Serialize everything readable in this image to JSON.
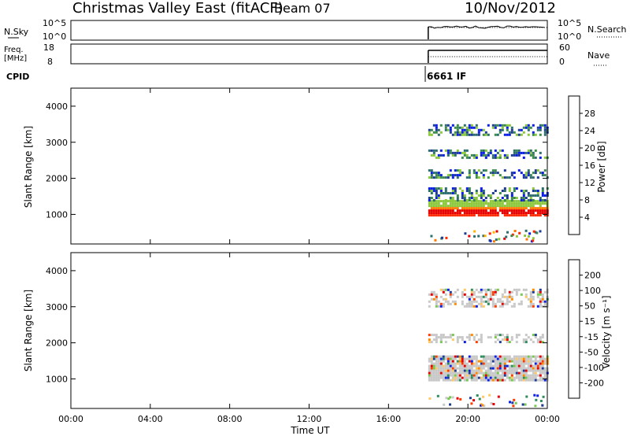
{
  "header": {
    "title": "Christmas Valley East (fitACF)",
    "beam": "Beam 07",
    "date": "10/Nov/2012"
  },
  "nsky_panel": {
    "left_label": "N.Sky",
    "left_ticks": [
      "10^5",
      "10^0"
    ],
    "right_ticks": [
      "10^5",
      "10^0"
    ],
    "right_label": "N.Search"
  },
  "freq_panel": {
    "left_label_1": "Freq.",
    "left_label_2": "[MHz]",
    "left_ticks": [
      "18",
      "8"
    ],
    "right_ticks": [
      "60",
      "0"
    ],
    "right_label": "Nave"
  },
  "cpid": {
    "label": "CPID",
    "value": "6661 IF"
  },
  "colors": {
    "power_scale": [
      "#0a1ee6",
      "#1e3c96",
      "#2e6e6e",
      "#3c8c4b",
      "#8cc83c",
      "#ffb400",
      "#ff7800",
      "#ff2800",
      "#e60000"
    ],
    "velocity_scale": [
      "#e60000",
      "#ff3c00",
      "#ff8c00",
      "#ffc864",
      "#c8c8c8",
      "#78c850",
      "#2e8c5a",
      "#1e3c96",
      "#0a1ee6"
    ]
  },
  "chart_data": [
    {
      "type": "heatmap",
      "panel": "power",
      "ylabel": "Slant Range [km]",
      "yticks": [
        "1000",
        "2000",
        "3000",
        "4000"
      ],
      "ylim": [
        180,
        4500
      ],
      "xlim": [
        0,
        24
      ],
      "colorbar_label": "Power [dB]",
      "colorbar_ticks": [
        "4",
        "8",
        "12",
        "16",
        "20",
        "24",
        "28"
      ],
      "data_start_hour": 18.0,
      "data_end_hour": 24.0,
      "bands": [
        {
          "range_km": [
            950,
            1400
          ],
          "level_db": 28
        },
        {
          "range_km": [
            1400,
            1750
          ],
          "level_db": 14
        },
        {
          "range_km": [
            2000,
            2250
          ],
          "level_db": 12
        },
        {
          "range_km": [
            2600,
            2800
          ],
          "level_db": 10
        },
        {
          "range_km": [
            3200,
            3500
          ],
          "level_db": 8
        }
      ]
    },
    {
      "type": "heatmap",
      "panel": "velocity",
      "ylabel": "Slant Range [km]",
      "yticks": [
        "1000",
        "2000",
        "3000",
        "4000"
      ],
      "ylim": [
        180,
        4500
      ],
      "xlim": [
        0,
        24
      ],
      "colorbar_label": "Velocity [m s⁻¹]",
      "colorbar_ticks": [
        "200",
        "100",
        "50",
        "15",
        "-15",
        "-50",
        "-100",
        "-200"
      ],
      "data_start_hour": 18.0,
      "data_end_hour": 24.0,
      "bands": [
        {
          "range_km": [
            950,
            1650
          ],
          "velocity_ms": 0
        },
        {
          "range_km": [
            2000,
            2250
          ],
          "velocity_ms": -20
        },
        {
          "range_km": [
            3000,
            3500
          ],
          "velocity_ms": -40
        }
      ]
    }
  ],
  "xaxis": {
    "ticks": [
      "00:00",
      "04:00",
      "08:00",
      "12:00",
      "16:00",
      "20:00",
      "00:00"
    ],
    "label": "Time UT"
  }
}
